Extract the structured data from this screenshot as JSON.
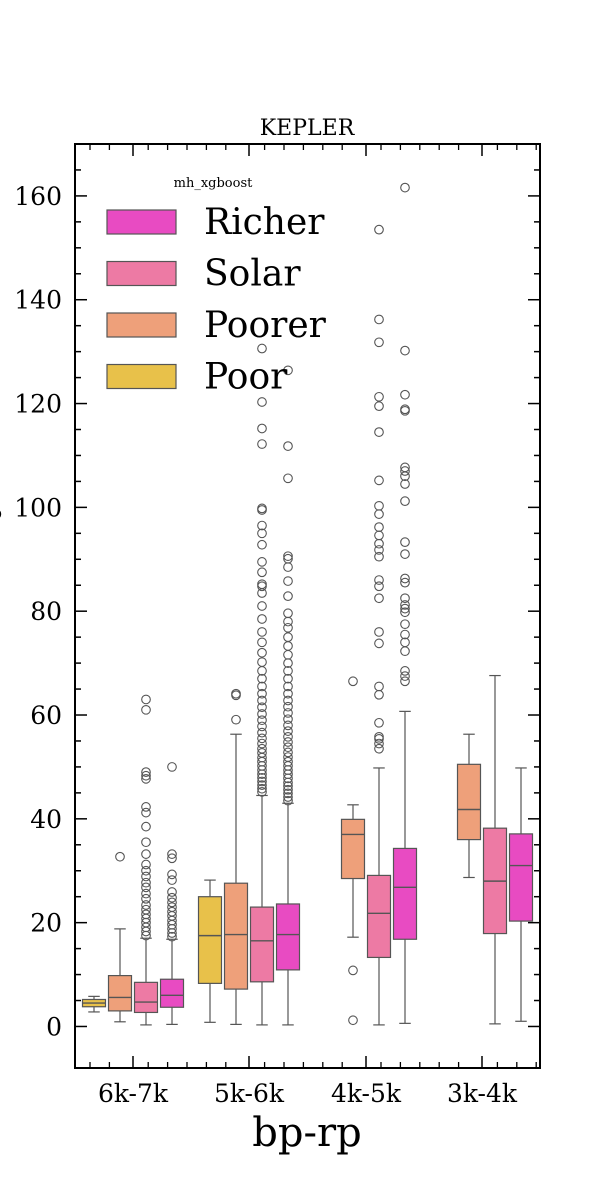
{
  "chart_data": {
    "type": "box",
    "title": "KEPLER",
    "xlabel": "bp-rp",
    "ylabel": "P",
    "ylim": [
      -8,
      170
    ],
    "yticks": [
      0,
      20,
      40,
      60,
      80,
      100,
      120,
      140,
      160
    ],
    "categories": [
      "6k-7k",
      "5k-6k",
      "4k-5k",
      "3k-4k"
    ],
    "legend": {
      "title": "mh_xgboost",
      "position": "top-left",
      "entries": [
        "Richer",
        "Solar",
        "Poorer",
        "Poor"
      ]
    },
    "series": [
      {
        "name": "Poor",
        "color": "#e8c14a",
        "boxes": [
          {
            "category": "6k-7k",
            "whislo": 2.8,
            "q1": 3.8,
            "med": 4.5,
            "q3": 5.2,
            "whishi": 5.8,
            "fliers": []
          },
          {
            "category": "5k-6k",
            "whislo": 0.8,
            "q1": 8.3,
            "med": 17.5,
            "q3": 25.0,
            "whishi": 28.2,
            "fliers": []
          },
          null,
          null
        ]
      },
      {
        "name": "Poorer",
        "color": "#eea07a",
        "boxes": [
          {
            "category": "6k-7k",
            "whislo": 0.9,
            "q1": 3.0,
            "med": 5.6,
            "q3": 9.8,
            "whishi": 18.8,
            "fliers": [
              32.7
            ]
          },
          {
            "category": "5k-6k",
            "whislo": 0.4,
            "q1": 7.2,
            "med": 17.7,
            "q3": 27.6,
            "whishi": 56.3,
            "fliers": [
              59.1,
              63.8,
              64.1
            ]
          },
          {
            "category": "4k-5k",
            "whislo": 17.2,
            "q1": 28.5,
            "med": 37.0,
            "q3": 39.9,
            "whishi": 42.7,
            "fliers": [
              1.2,
              10.8,
              66.5
            ]
          },
          {
            "category": "3k-4k",
            "whislo": 28.7,
            "q1": 36.0,
            "med": 41.8,
            "q3": 50.5,
            "whishi": 56.3,
            "fliers": []
          }
        ]
      },
      {
        "name": "Solar",
        "color": "#ed7aa4",
        "boxes": [
          {
            "category": "6k-7k",
            "whislo": 0.3,
            "q1": 2.7,
            "med": 4.7,
            "q3": 8.5,
            "whishi": 17.0,
            "fliers": [
              17.5,
              18.3,
              19.1,
              20.0,
              20.8,
              21.6,
              22.5,
              23.4,
              24.6,
              25.6,
              26.8,
              27.7,
              28.9,
              30.0,
              31.2,
              33.2,
              35.5,
              38.5,
              41.2,
              42.3,
              47.7,
              48.3,
              49.0,
              61.0,
              63.0
            ]
          },
          {
            "category": "5k-6k",
            "whislo": 0.3,
            "q1": 8.6,
            "med": 16.5,
            "q3": 23.0,
            "whishi": 44.5,
            "fliers": [
              45.2,
              45.8,
              46.5,
              47.2,
              47.9,
              48.6,
              49.4,
              50.2,
              51.0,
              51.8,
              52.7,
              53.5,
              54.5,
              55.5,
              56.6,
              57.8,
              59.0,
              60.2,
              61.5,
              62.8,
              64.1,
              65.5,
              67.0,
              68.5,
              70.2,
              72.0,
              74.0,
              76.0,
              78.5,
              81.0,
              83.5,
              84.8,
              85.2,
              87.5,
              89.5,
              92.8,
              95.0,
              96.5,
              99.5,
              99.8,
              112.2,
              115.2,
              120.3,
              130.6
            ]
          },
          {
            "category": "4k-5k",
            "whislo": 0.3,
            "q1": 13.3,
            "med": 21.8,
            "q3": 29.1,
            "whishi": 49.8,
            "fliers": [
              53.5,
              54.5,
              55.4,
              55.8,
              58.5,
              63.9,
              65.5,
              73.8,
              76.0,
              82.5,
              84.8,
              86.0,
              90.5,
              91.8,
              93.0,
              94.6,
              96.2,
              98.7,
              100.3,
              105.2,
              114.5,
              119.5,
              121.3,
              131.8,
              136.2,
              153.5
            ]
          },
          {
            "category": "3k-4k",
            "whislo": 0.5,
            "q1": 17.9,
            "med": 28.0,
            "q3": 38.2,
            "whishi": 67.6,
            "fliers": []
          }
        ]
      },
      {
        "name": "Richer",
        "color": "#e84bc2",
        "boxes": [
          {
            "category": "6k-7k",
            "whislo": 0.4,
            "q1": 3.7,
            "med": 6.0,
            "q3": 9.1,
            "whishi": 16.8,
            "fliers": [
              17.3,
              18.0,
              18.8,
              19.6,
              20.4,
              21.3,
              22.1,
              23.0,
              23.9,
              24.8,
              25.9,
              28.2,
              29.3,
              32.4,
              33.2,
              50.0
            ]
          },
          {
            "category": "5k-6k",
            "whislo": 0.3,
            "q1": 10.9,
            "med": 17.7,
            "q3": 23.6,
            "whishi": 43.0,
            "fliers": [
              43.5,
              44.2,
              44.9,
              45.6,
              46.3,
              47.0,
              47.8,
              48.6,
              49.4,
              50.2,
              51.0,
              51.9,
              52.8,
              53.8,
              54.8,
              55.8,
              56.9,
              58.0,
              59.2,
              60.4,
              61.6,
              62.8,
              64.1,
              65.5,
              67.0,
              68.5,
              70.0,
              71.6,
              73.3,
              75.0,
              76.8,
              78.0,
              79.6,
              82.9,
              85.8,
              88.5,
              90.1,
              90.6,
              105.6,
              111.8,
              126.4
            ]
          },
          {
            "category": "4k-5k",
            "whislo": 0.6,
            "q1": 16.8,
            "med": 26.8,
            "q3": 34.3,
            "whishi": 60.7,
            "fliers": [
              66.5,
              67.5,
              68.5,
              72.3,
              74.0,
              75.5,
              77.5,
              79.8,
              80.5,
              81.2,
              82.5,
              85.5,
              86.3,
              91.0,
              93.3,
              101.2,
              104.5,
              106.0,
              107.0,
              107.7,
              118.6,
              118.9,
              121.7,
              130.2,
              161.6
            ]
          },
          {
            "category": "3k-4k",
            "whislo": 1.0,
            "q1": 20.3,
            "med": 31.0,
            "q3": 37.1,
            "whishi": 49.8,
            "fliers": []
          }
        ]
      }
    ]
  }
}
